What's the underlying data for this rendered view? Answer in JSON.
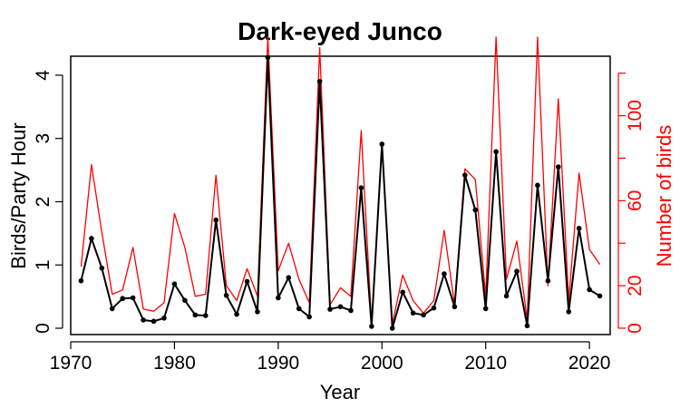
{
  "chart_data": {
    "type": "line",
    "title": "Dark-eyed Junco",
    "xlabel": "Year",
    "ylabel": "Birds/Party Hour",
    "y2label": "Number of birds",
    "xlim": [
      1970,
      2022
    ],
    "ylim": [
      -0.1,
      4.3
    ],
    "y2lim": [
      -3,
      128
    ],
    "xticks": [
      1970,
      1980,
      1990,
      2000,
      2010,
      2020
    ],
    "yticks": [
      0,
      1,
      2,
      3,
      4
    ],
    "y2ticks": [
      0,
      20,
      60,
      100
    ],
    "x": [
      1971,
      1972,
      1973,
      1974,
      1975,
      1976,
      1977,
      1978,
      1979,
      1980,
      1981,
      1982,
      1983,
      1984,
      1985,
      1986,
      1987,
      1988,
      1989,
      1990,
      1991,
      1992,
      1993,
      1994,
      1995,
      1996,
      1997,
      1998,
      1999,
      2000,
      2001,
      2002,
      2003,
      2004,
      2005,
      2006,
      2007,
      2008,
      2009,
      2010,
      2011,
      2012,
      2013,
      2014,
      2015,
      2016,
      2017,
      2018,
      2019,
      2020,
      2021
    ],
    "series": [
      {
        "name": "Birds/Party Hour",
        "axis": "left",
        "color": "#000000",
        "markers": true,
        "values": [
          0.75,
          1.42,
          0.95,
          0.31,
          0.47,
          0.48,
          0.13,
          0.11,
          0.16,
          0.7,
          0.44,
          0.21,
          0.2,
          1.71,
          0.52,
          0.22,
          0.74,
          0.26,
          4.28,
          0.48,
          0.8,
          0.31,
          0.18,
          3.9,
          0.3,
          0.34,
          0.28,
          2.22,
          0.03,
          2.91,
          0.0,
          0.57,
          0.24,
          0.21,
          0.32,
          0.86,
          0.34,
          2.42,
          1.87,
          0.31,
          2.79,
          0.51,
          0.9,
          0.04,
          2.26,
          0.75,
          2.55,
          0.26,
          1.58,
          0.61,
          0.51
        ]
      },
      {
        "name": "Number of birds",
        "axis": "right",
        "color": "#ff0000",
        "markers": false,
        "values": [
          29,
          77,
          45,
          16,
          18,
          38,
          9,
          8,
          12,
          54,
          38,
          15,
          16,
          72,
          20,
          13,
          28,
          15,
          137,
          27,
          40,
          23,
          12,
          132,
          11,
          19,
          15,
          93,
          2,
          86,
          2,
          25,
          13,
          7,
          13,
          46,
          11,
          75,
          70,
          15,
          137,
          23,
          41,
          4,
          137,
          20,
          108,
          13,
          73,
          37,
          30
        ]
      }
    ]
  }
}
